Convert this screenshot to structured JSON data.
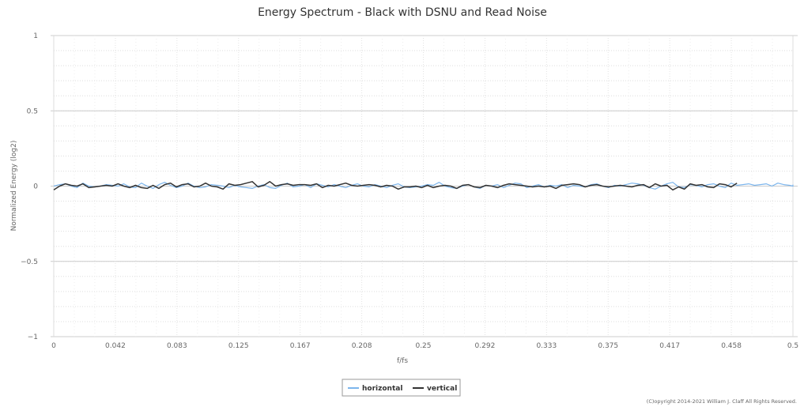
{
  "chart_data": {
    "type": "line",
    "title": "Energy Spectrum - Black with DSNU and Read Noise",
    "xlabel": "f/fs",
    "ylabel": "Normalized Energy (log2)",
    "xlim": [
      0,
      0.5
    ],
    "ylim": [
      -1,
      1
    ],
    "x_tick_labels": [
      "0",
      "0.042",
      "0.083",
      "0.125",
      "0.167",
      "0.208",
      "0.25",
      "0.292",
      "0.333",
      "0.375",
      "0.417",
      "0.458",
      "0.5"
    ],
    "y_tick_labels": [
      "1",
      "0.5",
      "0",
      "-0.5",
      "-1"
    ],
    "y_ticks": [
      1,
      0.5,
      0,
      -0.5,
      -1
    ],
    "grid": true,
    "legend_position": "bottom-center",
    "series": [
      {
        "name": "horizontal",
        "color": "#7cb5ec",
        "x_step": 0.00395,
        "values": [
          0.0,
          0.01,
          0.015,
          0.0,
          -0.01,
          0.02,
          0.0,
          -0.005,
          0.0,
          0.01,
          0.005,
          0.0,
          0.015,
          -0.005,
          -0.01,
          0.02,
          0.0,
          -0.015,
          0.01,
          0.025,
          0.005,
          -0.01,
          0.0,
          0.02,
          0.0,
          -0.01,
          -0.005,
          0.01,
          0.005,
          0.0,
          -0.01,
          0.005,
          -0.005,
          -0.01,
          -0.015,
          0.0,
          0.01,
          -0.01,
          -0.015,
          0.005,
          0.02,
          -0.005,
          0.0,
          0.01,
          -0.01,
          0.015,
          0.005,
          -0.005,
          0.01,
          0.0,
          -0.01,
          0.005,
          0.015,
          0.0,
          -0.005,
          0.01,
          0.0,
          -0.01,
          0.005,
          0.015,
          -0.005,
          -0.01,
          -0.005,
          0.0,
          0.01,
          0.005,
          0.025,
          0.0,
          -0.01,
          -0.015,
          0.0,
          0.01,
          -0.005,
          -0.015,
          0.005,
          0.0,
          0.01,
          -0.01,
          0.005,
          0.02,
          0.015,
          -0.01,
          0.0,
          0.01,
          -0.005,
          0.005,
          0.0,
          0.01,
          -0.01,
          0.005,
          0.0,
          -0.005,
          0.01,
          0.015,
          0.0,
          -0.01,
          0.005,
          0.0,
          0.01,
          0.02,
          0.015,
          0.005,
          -0.01,
          -0.02,
          0.0,
          0.015,
          0.025,
          -0.005,
          -0.01,
          0.01,
          0.005,
          -0.005,
          0.01,
          0.015,
          0.0,
          -0.01,
          0.02,
          0.005,
          0.01,
          0.015,
          0.005,
          0.01,
          0.015,
          0.0,
          0.02,
          0.01,
          0.005,
          0.0,
          0.01
        ]
      },
      {
        "name": "vertical",
        "color": "#333333",
        "x_step": 0.00395,
        "values": [
          -0.025,
          0.0,
          0.015,
          0.005,
          0.0,
          0.015,
          -0.01,
          -0.005,
          0.0,
          0.005,
          0.0,
          0.015,
          0.0,
          -0.01,
          0.005,
          -0.01,
          -0.015,
          0.005,
          -0.015,
          0.01,
          0.02,
          -0.005,
          0.01,
          0.015,
          -0.005,
          0.0,
          0.02,
          0.0,
          -0.005,
          -0.02,
          0.015,
          0.005,
          0.01,
          0.02,
          0.03,
          -0.005,
          0.005,
          0.03,
          0.0,
          0.01,
          0.015,
          0.005,
          0.01,
          0.01,
          0.005,
          0.015,
          -0.01,
          0.005,
          0.0,
          0.01,
          0.02,
          0.005,
          0.0,
          0.005,
          0.01,
          0.005,
          -0.005,
          0.005,
          0.0,
          -0.02,
          -0.005,
          -0.005,
          0.0,
          -0.01,
          0.005,
          -0.01,
          0.0,
          0.005,
          0.0,
          -0.015,
          0.005,
          0.01,
          -0.005,
          -0.01,
          0.005,
          0.0,
          -0.01,
          0.005,
          0.015,
          0.01,
          0.005,
          0.0,
          -0.005,
          0.0,
          -0.005,
          0.0,
          -0.015,
          0.005,
          0.01,
          0.015,
          0.01,
          -0.005,
          0.005,
          0.01,
          0.0,
          -0.005,
          0.0,
          0.005,
          0.0,
          -0.005,
          0.005,
          0.01,
          -0.01,
          0.015,
          0.0,
          0.005,
          -0.025,
          -0.005,
          -0.02,
          0.015,
          0.005,
          0.01,
          -0.005,
          -0.01,
          0.015,
          0.01,
          -0.005,
          0.02
        ]
      }
    ]
  },
  "legend": {
    "items": [
      {
        "label": "horizontal",
        "color": "#7cb5ec"
      },
      {
        "label": "vertical",
        "color": "#333333"
      }
    ]
  },
  "footer": {
    "copyright": "(C)opyright 2014-2021 William J. Claff All Rights Reserved."
  }
}
